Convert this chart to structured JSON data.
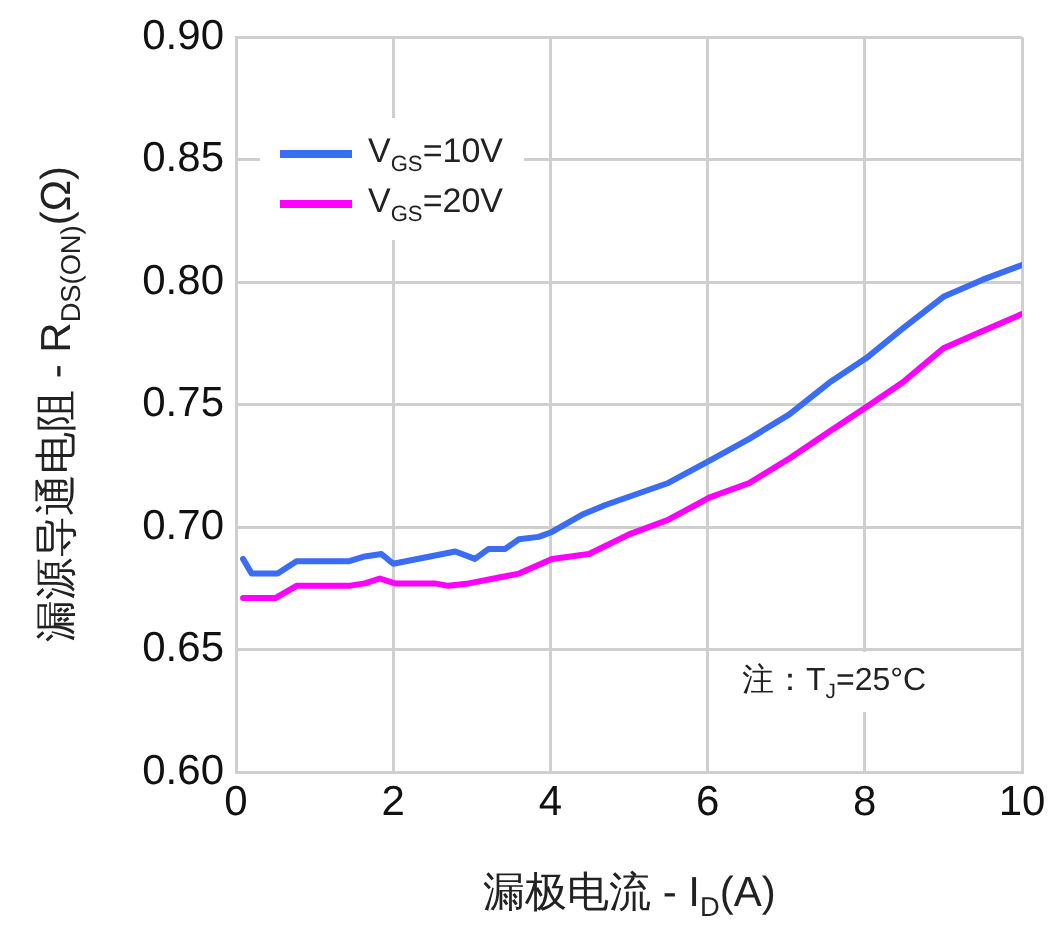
{
  "chart_data": {
    "type": "line",
    "xlabel": "漏极电流 - I$_{D}$(A)",
    "ylabel": "漏源导通电阻 - R$_{DS(ON)}$(Ω)",
    "series": [
      {
        "name": "V$_{GS}$=10V",
        "color": "#3a6cf4",
        "x": [
          0.09,
          0.2,
          0.53,
          0.77,
          1.43,
          1.64,
          1.85,
          2.0,
          2.79,
          3.04,
          3.21,
          3.42,
          3.6,
          3.85,
          4.02,
          4.4,
          4.7,
          5.5,
          6.02,
          6.53,
          7.04,
          7.55,
          8.02,
          8.48,
          9.0,
          9.5,
          10
        ],
        "values": [
          0.687,
          0.681,
          0.681,
          0.686,
          0.686,
          0.688,
          0.689,
          0.685,
          0.69,
          0.687,
          0.691,
          0.691,
          0.695,
          0.696,
          0.698,
          0.705,
          0.709,
          0.718,
          0.727,
          0.736,
          0.746,
          0.759,
          0.769,
          0.781,
          0.794,
          0.801,
          0.807
        ]
      },
      {
        "name": "V$_{GS}$=20V",
        "color": "#ff00ff",
        "x": [
          0.09,
          0.5,
          0.77,
          1.43,
          1.64,
          1.83,
          2.02,
          2.53,
          2.7,
          2.96,
          3.6,
          4.02,
          4.49,
          5.0,
          5.5,
          6.02,
          6.53,
          7.04,
          7.55,
          8.02,
          8.48,
          9.0,
          9.5,
          10
        ],
        "values": [
          0.671,
          0.671,
          0.676,
          0.676,
          0.677,
          0.679,
          0.677,
          0.677,
          0.676,
          0.677,
          0.681,
          0.687,
          0.689,
          0.697,
          0.703,
          0.712,
          0.718,
          0.728,
          0.739,
          0.749,
          0.759,
          0.773,
          0.78,
          0.787
        ]
      }
    ],
    "xlim": [
      0,
      10
    ],
    "xticks": [
      0,
      2,
      4,
      6,
      8,
      10
    ],
    "ylim": [
      0.6,
      0.9
    ],
    "yticks": [
      {
        "value": 0.6,
        "label": "0.60"
      },
      {
        "value": 0.65,
        "label": "0.65"
      },
      {
        "value": 0.7,
        "label": "0.70"
      },
      {
        "value": 0.75,
        "label": "0.75"
      },
      {
        "value": 0.8,
        "label": "0.80"
      },
      {
        "value": 0.85,
        "label": "0.85"
      },
      {
        "value": 0.9,
        "label": "0.90"
      }
    ],
    "grid": true,
    "legend": "top left",
    "marker": "none",
    "line_style": "solid",
    "annotations": [
      "注：T$_{J}$=25°C"
    ]
  }
}
